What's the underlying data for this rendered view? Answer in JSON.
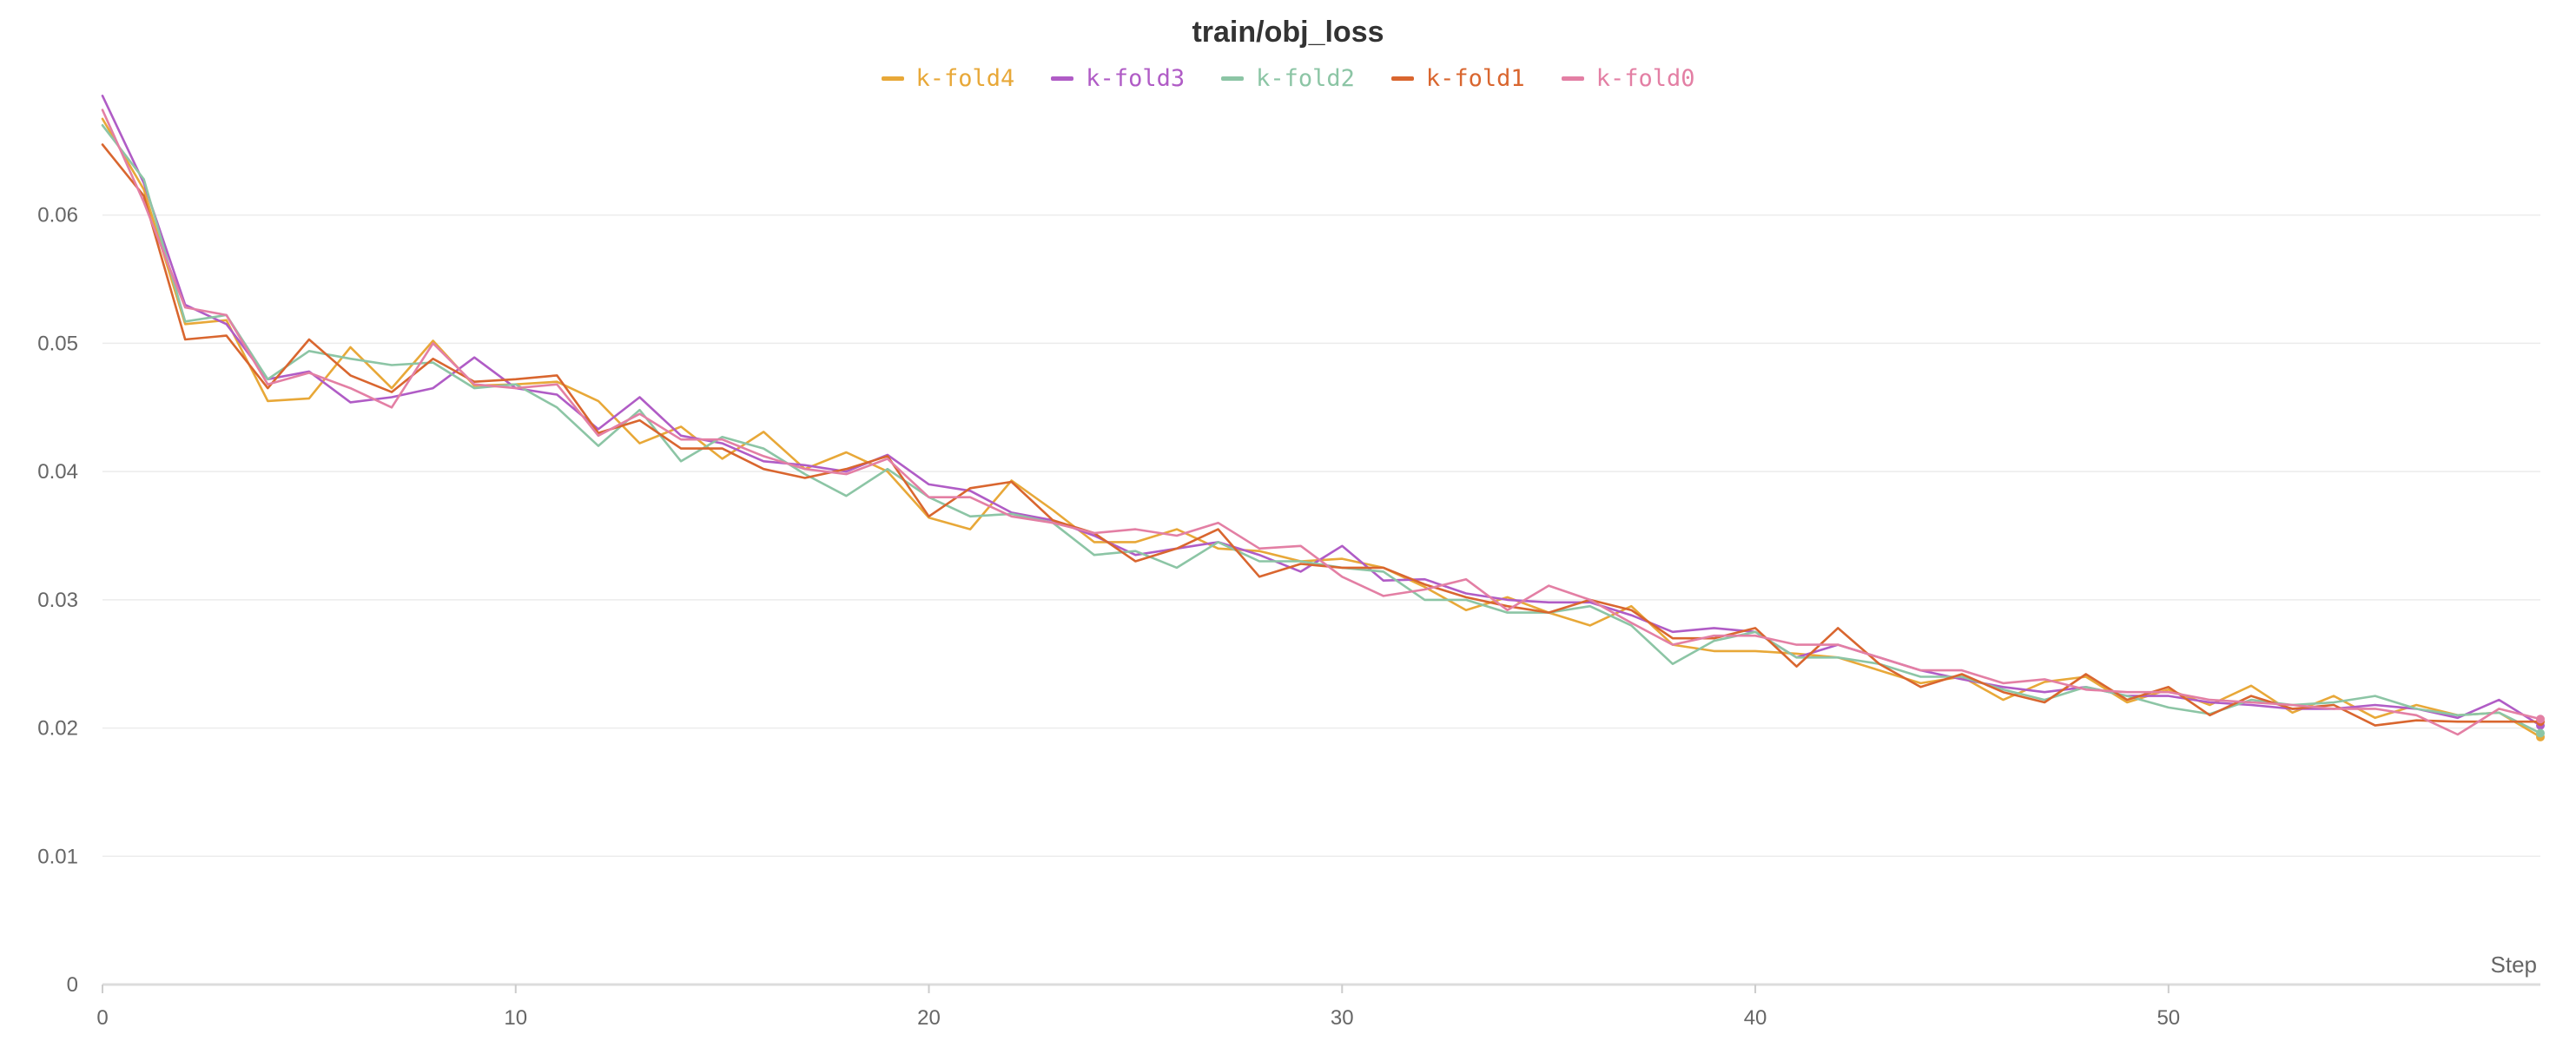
{
  "chart_data": {
    "type": "line",
    "title": "train/obj_loss",
    "xlabel": "Step",
    "ylabel": "",
    "xlim": [
      0,
      59
    ],
    "ylim": [
      0,
      0.07
    ],
    "x_ticks": [
      0,
      10,
      20,
      30,
      40,
      50
    ],
    "y_ticks": [
      0,
      0.01,
      0.02,
      0.03,
      0.04,
      0.05,
      0.06
    ],
    "x_tick_labels": [
      "0",
      "10",
      "20",
      "30",
      "40",
      "50"
    ],
    "y_tick_labels": [
      "0",
      "0.01",
      "0.02",
      "0.03",
      "0.04",
      "0.05",
      "0.06"
    ],
    "grid": "horizontal",
    "legend_position": "top-center",
    "x": [
      0,
      1,
      2,
      3,
      4,
      5,
      6,
      7,
      8,
      9,
      10,
      11,
      12,
      13,
      14,
      15,
      16,
      17,
      18,
      19,
      20,
      21,
      22,
      23,
      24,
      25,
      26,
      27,
      28,
      29,
      30,
      31,
      32,
      33,
      34,
      35,
      36,
      37,
      38,
      39,
      40,
      41,
      42,
      43,
      44,
      45,
      46,
      47,
      48,
      49,
      50,
      51,
      52,
      53,
      54,
      55,
      56,
      57,
      58,
      59
    ],
    "series": [
      {
        "name": "k-fold4",
        "color": "#e8a838",
        "values": [
          0.0675,
          0.062,
          0.0515,
          0.0518,
          0.0455,
          0.0457,
          0.0497,
          0.0465,
          0.0502,
          0.0467,
          0.0468,
          0.047,
          0.0455,
          0.0422,
          0.0435,
          0.041,
          0.0431,
          0.0402,
          0.0415,
          0.04,
          0.0364,
          0.0355,
          0.0393,
          0.037,
          0.0345,
          0.0345,
          0.0355,
          0.034,
          0.0338,
          0.033,
          0.0332,
          0.0325,
          0.031,
          0.0292,
          0.0302,
          0.029,
          0.028,
          0.0295,
          0.0265,
          0.026,
          0.026,
          0.0258,
          0.0255,
          0.0245,
          0.0235,
          0.024,
          0.0222,
          0.0236,
          0.024,
          0.022,
          0.023,
          0.0218,
          0.0233,
          0.0212,
          0.0225,
          0.0208,
          0.0218,
          0.021,
          0.0212,
          0.0193
        ]
      },
      {
        "name": "k-fold3",
        "color": "#b05cc6",
        "values": [
          0.0693,
          0.0625,
          0.053,
          0.0515,
          0.0472,
          0.0478,
          0.0454,
          0.0458,
          0.0465,
          0.0489,
          0.0465,
          0.046,
          0.0433,
          0.0458,
          0.0428,
          0.0422,
          0.0408,
          0.0405,
          0.04,
          0.0413,
          0.039,
          0.0385,
          0.0368,
          0.0362,
          0.035,
          0.0335,
          0.034,
          0.0345,
          0.0335,
          0.0322,
          0.0342,
          0.0315,
          0.0316,
          0.0305,
          0.03,
          0.0298,
          0.0298,
          0.0288,
          0.0275,
          0.0278,
          0.0275,
          0.0255,
          0.0265,
          0.0255,
          0.0245,
          0.0238,
          0.0232,
          0.0228,
          0.0232,
          0.0225,
          0.0225,
          0.022,
          0.0218,
          0.0215,
          0.0215,
          0.0218,
          0.0215,
          0.0208,
          0.0222,
          0.0202
        ]
      },
      {
        "name": "k-fold2",
        "color": "#8cc5a5",
        "values": [
          0.067,
          0.0628,
          0.0517,
          0.0522,
          0.0472,
          0.0494,
          0.0488,
          0.0483,
          0.0485,
          0.0465,
          0.0468,
          0.045,
          0.042,
          0.0448,
          0.0408,
          0.0427,
          0.0418,
          0.0398,
          0.0381,
          0.0402,
          0.038,
          0.0365,
          0.0367,
          0.036,
          0.0335,
          0.0338,
          0.0325,
          0.0345,
          0.033,
          0.033,
          0.0325,
          0.0322,
          0.03,
          0.03,
          0.029,
          0.029,
          0.0295,
          0.028,
          0.025,
          0.0268,
          0.0275,
          0.0255,
          0.0255,
          0.025,
          0.024,
          0.024,
          0.023,
          0.0222,
          0.0232,
          0.0225,
          0.0216,
          0.0211,
          0.0222,
          0.0218,
          0.022,
          0.0225,
          0.0215,
          0.021,
          0.0212,
          0.0196
        ]
      },
      {
        "name": "k-fold1",
        "color": "#d9662f",
        "values": [
          0.0655,
          0.0615,
          0.0503,
          0.0506,
          0.0465,
          0.0503,
          0.0475,
          0.0462,
          0.0488,
          0.047,
          0.0472,
          0.0475,
          0.043,
          0.044,
          0.0418,
          0.0418,
          0.0402,
          0.0395,
          0.0402,
          0.0412,
          0.0365,
          0.0387,
          0.0392,
          0.0362,
          0.0352,
          0.033,
          0.034,
          0.0355,
          0.0318,
          0.0328,
          0.0325,
          0.0325,
          0.0312,
          0.0302,
          0.0295,
          0.029,
          0.03,
          0.0292,
          0.027,
          0.027,
          0.0278,
          0.0248,
          0.0278,
          0.025,
          0.0232,
          0.0242,
          0.0228,
          0.022,
          0.0242,
          0.0222,
          0.0232,
          0.021,
          0.0225,
          0.0215,
          0.0218,
          0.0202,
          0.0206,
          0.0205,
          0.0205,
          0.0205
        ]
      },
      {
        "name": "k-fold0",
        "color": "#e37fa4",
        "values": [
          0.0682,
          0.061,
          0.0528,
          0.0522,
          0.0468,
          0.0477,
          0.0465,
          0.045,
          0.05,
          0.0468,
          0.0465,
          0.0468,
          0.0428,
          0.0445,
          0.0425,
          0.0425,
          0.0412,
          0.0402,
          0.0398,
          0.041,
          0.038,
          0.038,
          0.0365,
          0.036,
          0.0352,
          0.0355,
          0.035,
          0.036,
          0.034,
          0.0342,
          0.0318,
          0.0303,
          0.0308,
          0.0316,
          0.0292,
          0.0311,
          0.03,
          0.0282,
          0.0265,
          0.0272,
          0.0272,
          0.0265,
          0.0265,
          0.0255,
          0.0245,
          0.0245,
          0.0235,
          0.0238,
          0.023,
          0.0228,
          0.0228,
          0.0222,
          0.022,
          0.0218,
          0.0215,
          0.0215,
          0.021,
          0.0195,
          0.0215,
          0.0207
        ]
      }
    ]
  }
}
